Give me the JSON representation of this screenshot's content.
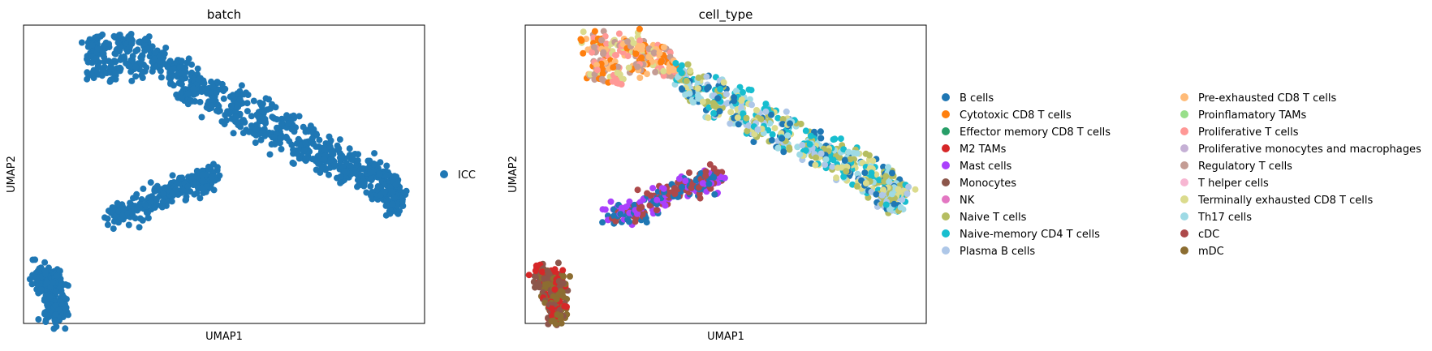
{
  "chart_data": [
    {
      "type": "scatter",
      "title": "batch",
      "xlabel": "UMAP1",
      "ylabel": "UMAP2",
      "xlim": [
        0,
        100
      ],
      "ylim": [
        0,
        100
      ],
      "grid": false,
      "legend": {
        "placement": "right",
        "entries": [
          {
            "label": "ICC",
            "color": "#1f77b4"
          }
        ]
      },
      "clusters": [
        {
          "name": "upper-left lobe",
          "category": "ICC",
          "points": [
            [
              17,
              94
            ],
            [
              19,
              92
            ],
            [
              24,
              93
            ],
            [
              27,
              94
            ],
            [
              31,
              92
            ],
            [
              34,
              88
            ],
            [
              37,
              85
            ],
            [
              18,
              85
            ],
            [
              23,
              84
            ],
            [
              28,
              86
            ]
          ]
        },
        {
          "name": "main arc",
          "category": "ICC",
          "points": [
            [
              39,
              84
            ],
            [
              43,
              80
            ],
            [
              48,
              78
            ],
            [
              54,
              75
            ],
            [
              60,
              71
            ],
            [
              66,
              67
            ],
            [
              72,
              62
            ],
            [
              77,
              58
            ],
            [
              82,
              55
            ],
            [
              86,
              52
            ],
            [
              90,
              49
            ],
            [
              92,
              46
            ],
            [
              93,
              43
            ],
            [
              41,
              77
            ],
            [
              47,
              73
            ],
            [
              53,
              69
            ],
            [
              58,
              65
            ],
            [
              64,
              62
            ],
            [
              70,
              58
            ],
            [
              75,
              55
            ],
            [
              80,
              51
            ],
            [
              85,
              47
            ],
            [
              89,
              43
            ],
            [
              92,
              40
            ]
          ]
        },
        {
          "name": "middle streak",
          "category": "ICC",
          "points": [
            [
              23,
              36
            ],
            [
              26,
              37
            ],
            [
              29,
              39
            ],
            [
              32,
              41
            ],
            [
              35,
              43
            ],
            [
              38,
              45
            ],
            [
              41,
              46
            ],
            [
              44,
              47
            ],
            [
              46,
              48
            ],
            [
              47,
              49
            ]
          ]
        },
        {
          "name": "bottom-left blob",
          "category": "ICC",
          "points": [
            [
              4,
              16
            ],
            [
              5,
              15
            ],
            [
              6,
              14
            ],
            [
              7,
              15
            ],
            [
              8,
              14
            ],
            [
              8,
              11
            ],
            [
              7,
              9
            ],
            [
              8,
              6
            ],
            [
              7,
              4
            ],
            [
              8,
              3
            ]
          ]
        }
      ]
    },
    {
      "type": "scatter",
      "title": "cell_type",
      "xlabel": "UMAP1",
      "ylabel": "UMAP2",
      "xlim": [
        0,
        100
      ],
      "ylim": [
        0,
        100
      ],
      "grid": false,
      "legend": {
        "placement": "right",
        "columns": 2,
        "entries": [
          {
            "label": "B cells",
            "color": "#1f77b4"
          },
          {
            "label": "Cytotoxic CD8 T cells",
            "color": "#ff7f0e"
          },
          {
            "label": "Effector memory CD8 T cells",
            "color": "#279e68"
          },
          {
            "label": "M2 TAMs",
            "color": "#d62728"
          },
          {
            "label": "Mast cells",
            "color": "#aa40fc"
          },
          {
            "label": "Monocytes",
            "color": "#8c564b"
          },
          {
            "label": "NK",
            "color": "#e377c2"
          },
          {
            "label": "Naive T cells",
            "color": "#b5bd61"
          },
          {
            "label": "Naive-memory CD4 T cells",
            "color": "#17becf"
          },
          {
            "label": "Plasma B cells",
            "color": "#aec7e8"
          },
          {
            "label": "Pre-exhausted CD8 T cells",
            "color": "#ffbb78"
          },
          {
            "label": "Proinflamatory TAMs",
            "color": "#98df8a"
          },
          {
            "label": "Proliferative T cells",
            "color": "#ff9896"
          },
          {
            "label": "Proliferative monocytes and macrophages",
            "color": "#c5b0d5"
          },
          {
            "label": "Regulatory T cells",
            "color": "#c49c94"
          },
          {
            "label": "T helper cells",
            "color": "#f7b6d2"
          },
          {
            "label": "Terminally exhausted CD8 T cells",
            "color": "#dbdb8d"
          },
          {
            "label": "Th17 cells",
            "color": "#9edae5"
          },
          {
            "label": "cDC",
            "color": "#ad494a"
          },
          {
            "label": "mDC",
            "color": "#8c6d31"
          }
        ]
      },
      "clusters": [
        {
          "name": "upper-left lobe",
          "categories": [
            "Cytotoxic CD8 T cells",
            "Pre-exhausted CD8 T cells",
            "Proliferative T cells",
            "Terminally exhausted CD8 T cells",
            "Regulatory T cells"
          ],
          "points": [
            [
              17,
              94
            ],
            [
              19,
              92
            ],
            [
              24,
              93
            ],
            [
              27,
              94
            ],
            [
              31,
              92
            ],
            [
              34,
              88
            ],
            [
              37,
              85
            ],
            [
              18,
              85
            ],
            [
              23,
              84
            ],
            [
              28,
              86
            ]
          ]
        },
        {
          "name": "main arc",
          "categories": [
            "Naive-memory CD4 T cells",
            "Th17 cells",
            "Naive T cells",
            "Terminally exhausted CD8 T cells",
            "Plasma B cells",
            "B cells"
          ],
          "points": [
            [
              39,
              84
            ],
            [
              43,
              80
            ],
            [
              48,
              78
            ],
            [
              54,
              75
            ],
            [
              60,
              71
            ],
            [
              66,
              67
            ],
            [
              72,
              62
            ],
            [
              77,
              58
            ],
            [
              82,
              55
            ],
            [
              86,
              52
            ],
            [
              90,
              49
            ],
            [
              92,
              46
            ],
            [
              93,
              43
            ],
            [
              41,
              77
            ],
            [
              47,
              73
            ],
            [
              53,
              69
            ],
            [
              58,
              65
            ],
            [
              64,
              62
            ],
            [
              70,
              58
            ],
            [
              75,
              55
            ],
            [
              80,
              51
            ],
            [
              85,
              47
            ],
            [
              89,
              43
            ],
            [
              92,
              40
            ]
          ]
        },
        {
          "name": "middle streak",
          "categories": [
            "B cells",
            "Mast cells",
            "cDC"
          ],
          "points": [
            [
              23,
              36
            ],
            [
              26,
              37
            ],
            [
              29,
              39
            ],
            [
              32,
              41
            ],
            [
              35,
              43
            ],
            [
              38,
              45
            ],
            [
              41,
              46
            ],
            [
              44,
              47
            ],
            [
              46,
              48
            ],
            [
              47,
              49
            ]
          ]
        },
        {
          "name": "bottom-left blob",
          "categories": [
            "mDC",
            "M2 TAMs",
            "Monocytes"
          ],
          "points": [
            [
              4,
              16
            ],
            [
              5,
              15
            ],
            [
              6,
              14
            ],
            [
              7,
              15
            ],
            [
              8,
              14
            ],
            [
              8,
              11
            ],
            [
              7,
              9
            ],
            [
              8,
              6
            ],
            [
              7,
              4
            ],
            [
              8,
              3
            ]
          ]
        }
      ]
    }
  ]
}
